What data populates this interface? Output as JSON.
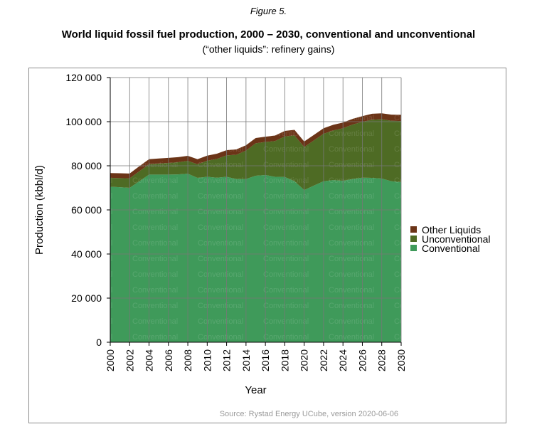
{
  "figure_label": "Figure 5.",
  "colors": {
    "conventional": "#3f9a5a",
    "unconventional": "#4e6b24",
    "other_liquids": "#6b3417",
    "grid": "#777777",
    "frame": "#8c8c8c"
  },
  "chart_data": {
    "type": "area",
    "stacked": true,
    "title": "World liquid fossil fuel production, 2000 – 2030, conventional and unconventional",
    "subtitle": "(“other liquids”: refinery gains)",
    "xlabel": "Year",
    "ylabel": "Production (kbbl/d)",
    "ylim": [
      0,
      120000
    ],
    "y_ticks": [
      "0",
      "20 000",
      "40 000",
      "60 000",
      "80 000",
      "100 000",
      "120 000"
    ],
    "x_ticks": [
      "2000",
      "2002",
      "2004",
      "2006",
      "2008",
      "2010",
      "2012",
      "2014",
      "2016",
      "2018",
      "2020",
      "2022",
      "2024",
      "2026",
      "2028",
      "2030"
    ],
    "grid": true,
    "legend_position": "right",
    "x": [
      2000,
      2001,
      2002,
      2003,
      2004,
      2005,
      2006,
      2007,
      2008,
      2009,
      2010,
      2011,
      2012,
      2013,
      2014,
      2015,
      2016,
      2017,
      2018,
      2019,
      2020,
      2021,
      2022,
      2023,
      2024,
      2025,
      2026,
      2027,
      2028,
      2029,
      2030
    ],
    "series": [
      {
        "name": "Conventional",
        "color_key": "conventional",
        "values": [
          70500,
          70300,
          70000,
          73000,
          76000,
          76000,
          76000,
          76100,
          76400,
          74500,
          75000,
          74600,
          75000,
          74000,
          74000,
          75500,
          75800,
          75000,
          74900,
          73000,
          69000,
          71000,
          73000,
          73500,
          73200,
          74000,
          74600,
          74500,
          74200,
          73000,
          72600
        ]
      },
      {
        "name": "Unconventional",
        "color_key": "unconventional",
        "values": [
          4000,
          4100,
          4300,
          4500,
          4700,
          5000,
          5300,
          5500,
          5800,
          6200,
          7300,
          8500,
          9700,
          11000,
          12900,
          14700,
          15000,
          16200,
          18400,
          20800,
          19500,
          20500,
          21500,
          22500,
          23800,
          24700,
          25300,
          26400,
          26900,
          27400,
          27700
        ]
      },
      {
        "name": "Other Liquids",
        "color_key": "other_liquids",
        "values": [
          2200,
          2200,
          2200,
          2300,
          2300,
          2300,
          2300,
          2300,
          2300,
          2300,
          2300,
          2400,
          2400,
          2400,
          2400,
          2400,
          2400,
          2500,
          2500,
          2500,
          2500,
          2500,
          2500,
          2600,
          2600,
          2600,
          2600,
          2700,
          2700,
          2800,
          2800
        ]
      }
    ],
    "source": "Source: Rystad Energy UCube, version 2020-06-06"
  }
}
